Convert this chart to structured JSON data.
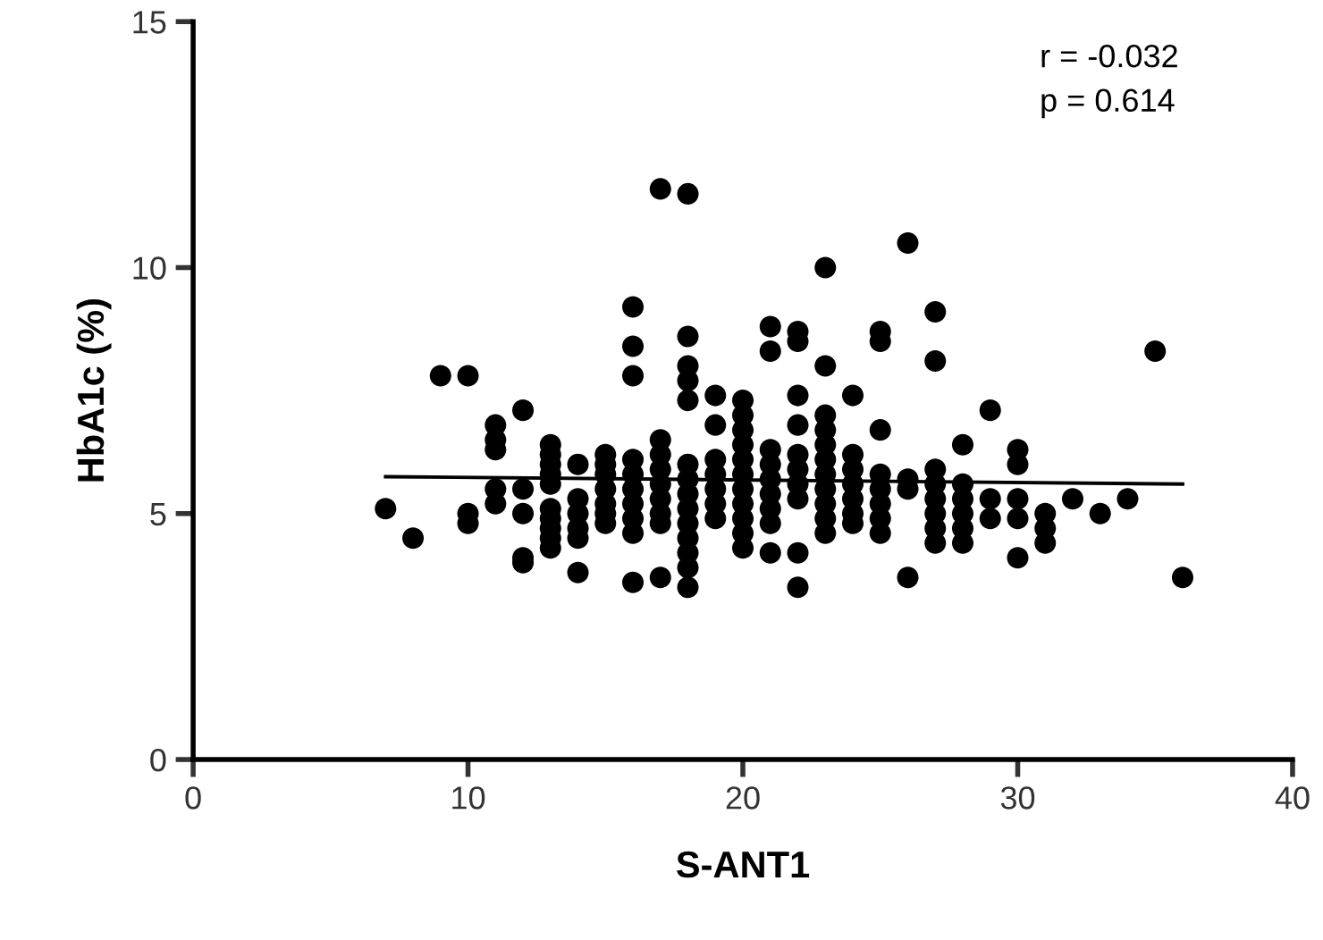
{
  "chart_data": {
    "type": "scatter",
    "xlabel": "S-ANT1",
    "ylabel": "HbA1c (%)",
    "xlim": [
      0,
      40
    ],
    "xticks": [
      0,
      10,
      20,
      30,
      40
    ],
    "ylim": [
      0,
      15
    ],
    "yticks": [
      0,
      5,
      10,
      15
    ],
    "grid": false,
    "marker": "circle",
    "legend": false,
    "annotations": [
      "r = -0.032",
      "p = 0.614"
    ],
    "series": [
      {
        "color": "#000000",
        "x": [
          7,
          8,
          9,
          10,
          10,
          10,
          11,
          11,
          11,
          11,
          11,
          12,
          12,
          12,
          12,
          12,
          13,
          13,
          13,
          13,
          13,
          13,
          13,
          13,
          13,
          13,
          14,
          14,
          14,
          14,
          14,
          14,
          15,
          15,
          15,
          15,
          15,
          15,
          15,
          16,
          16,
          16,
          16,
          16,
          16,
          16,
          16,
          16,
          16,
          17,
          17,
          17,
          17,
          17,
          17,
          17,
          17,
          17,
          18,
          18,
          18,
          18,
          18,
          18,
          18,
          18,
          18,
          18,
          18,
          18,
          18,
          18,
          19,
          19,
          19,
          19,
          19,
          19,
          19,
          20,
          20,
          20,
          20,
          20,
          20,
          20,
          20,
          20,
          20,
          20,
          21,
          21,
          21,
          21,
          21,
          21,
          21,
          21,
          21,
          22,
          22,
          22,
          22,
          22,
          22,
          22,
          22,
          22,
          22,
          23,
          23,
          23,
          23,
          23,
          23,
          23,
          23,
          23,
          23,
          23,
          24,
          24,
          24,
          24,
          24,
          24,
          24,
          25,
          25,
          25,
          25,
          25,
          25,
          25,
          25,
          26,
          26,
          26,
          26,
          27,
          27,
          27,
          27,
          27,
          27,
          27,
          27,
          28,
          28,
          28,
          28,
          28,
          28,
          29,
          29,
          29,
          30,
          30,
          30,
          30,
          30,
          31,
          31,
          31,
          32,
          33,
          34,
          35,
          36
        ],
        "values": [
          5.1,
          4.5,
          7.8,
          7.8,
          5.0,
          4.8,
          6.8,
          6.5,
          6.3,
          5.5,
          5.2,
          7.1,
          5.5,
          5.0,
          4.1,
          4.0,
          6.4,
          6.2,
          6.0,
          5.8,
          5.6,
          5.1,
          4.9,
          4.7,
          4.5,
          4.3,
          6.0,
          5.3,
          5.0,
          4.7,
          4.5,
          3.8,
          6.2,
          6.0,
          5.8,
          5.5,
          5.2,
          5.0,
          4.8,
          9.2,
          8.4,
          7.8,
          6.1,
          5.8,
          5.5,
          5.2,
          4.9,
          4.6,
          3.6,
          11.6,
          6.5,
          6.2,
          5.9,
          5.6,
          5.3,
          5.0,
          4.8,
          3.7,
          11.5,
          8.6,
          8.0,
          7.7,
          7.3,
          6.0,
          5.7,
          5.4,
          5.1,
          4.8,
          4.5,
          4.2,
          3.9,
          3.5,
          7.4,
          6.8,
          6.1,
          5.8,
          5.5,
          5.2,
          4.9,
          7.3,
          7.0,
          6.7,
          6.4,
          6.1,
          5.8,
          5.5,
          5.2,
          4.9,
          4.6,
          4.3,
          8.8,
          8.3,
          6.3,
          6.0,
          5.7,
          5.4,
          5.1,
          4.8,
          4.2,
          8.7,
          8.5,
          7.4,
          6.8,
          6.2,
          5.9,
          5.6,
          5.3,
          4.2,
          3.5,
          10.0,
          8.0,
          7.0,
          6.7,
          6.4,
          6.1,
          5.8,
          5.5,
          5.2,
          4.9,
          4.6,
          7.4,
          6.2,
          5.9,
          5.6,
          5.3,
          5.0,
          4.8,
          8.7,
          8.5,
          6.7,
          5.8,
          5.5,
          5.2,
          4.9,
          4.6,
          10.5,
          5.7,
          5.5,
          3.7,
          9.1,
          8.1,
          5.9,
          5.6,
          5.3,
          5.0,
          4.7,
          4.4,
          6.4,
          5.6,
          5.3,
          5.0,
          4.7,
          4.4,
          7.1,
          5.3,
          4.9,
          6.3,
          6.0,
          5.3,
          4.9,
          4.1,
          5.0,
          4.7,
          4.4,
          5.3,
          5.0,
          5.3,
          8.3,
          3.7
        ]
      },
      {
        "type": "line",
        "color": "#000000",
        "marker": "none",
        "x": [
          7,
          36
        ],
        "values": [
          5.75,
          5.6
        ]
      }
    ]
  }
}
